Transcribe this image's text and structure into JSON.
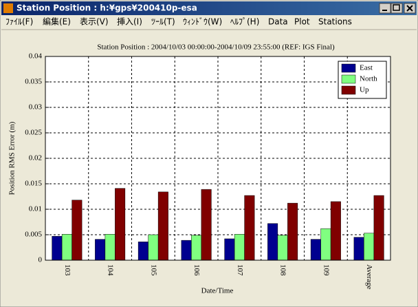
{
  "window": {
    "title": "Station Position : h:¥gps¥200410p-esa",
    "menu": [
      "ﾌｧｲﾙ(F)",
      "編集(E)",
      "表示(V)",
      "挿入(I)",
      "ﾂｰﾙ(T)",
      "ｳｨﾝﾄﾞｳ(W)",
      "ﾍﾙﾌﾟ(H)",
      "Data",
      "Plot",
      "Stations"
    ]
  },
  "chart_data": {
    "type": "bar",
    "title": "Station Position : 2004/10/03 00:00:00-2004/10/09 23:55:00 (REF: IGS Final)",
    "x_label": "Date/Time",
    "y_label": "Position RMS Error (m)",
    "categories": [
      "103",
      "104",
      "105",
      "106",
      "107",
      "108",
      "109",
      "Average"
    ],
    "series": [
      {
        "name": "East",
        "color": "#00008f",
        "values": [
          0.0047,
          0.0041,
          0.0036,
          0.0039,
          0.0042,
          0.0072,
          0.0041,
          0.0045
        ]
      },
      {
        "name": "North",
        "color": "#80ff80",
        "values": [
          0.0051,
          0.0051,
          0.005,
          0.0049,
          0.0051,
          0.0049,
          0.0062,
          0.0053
        ]
      },
      {
        "name": "Up",
        "color": "#800000",
        "values": [
          0.0118,
          0.0141,
          0.0134,
          0.0139,
          0.0127,
          0.0112,
          0.0115,
          0.0127
        ]
      }
    ],
    "ylim": [
      0,
      0.04
    ],
    "yticks": [
      0,
      0.005,
      0.01,
      0.015,
      0.02,
      0.025,
      0.03,
      0.035,
      0.04
    ],
    "grid": true,
    "legend": "top-right"
  }
}
